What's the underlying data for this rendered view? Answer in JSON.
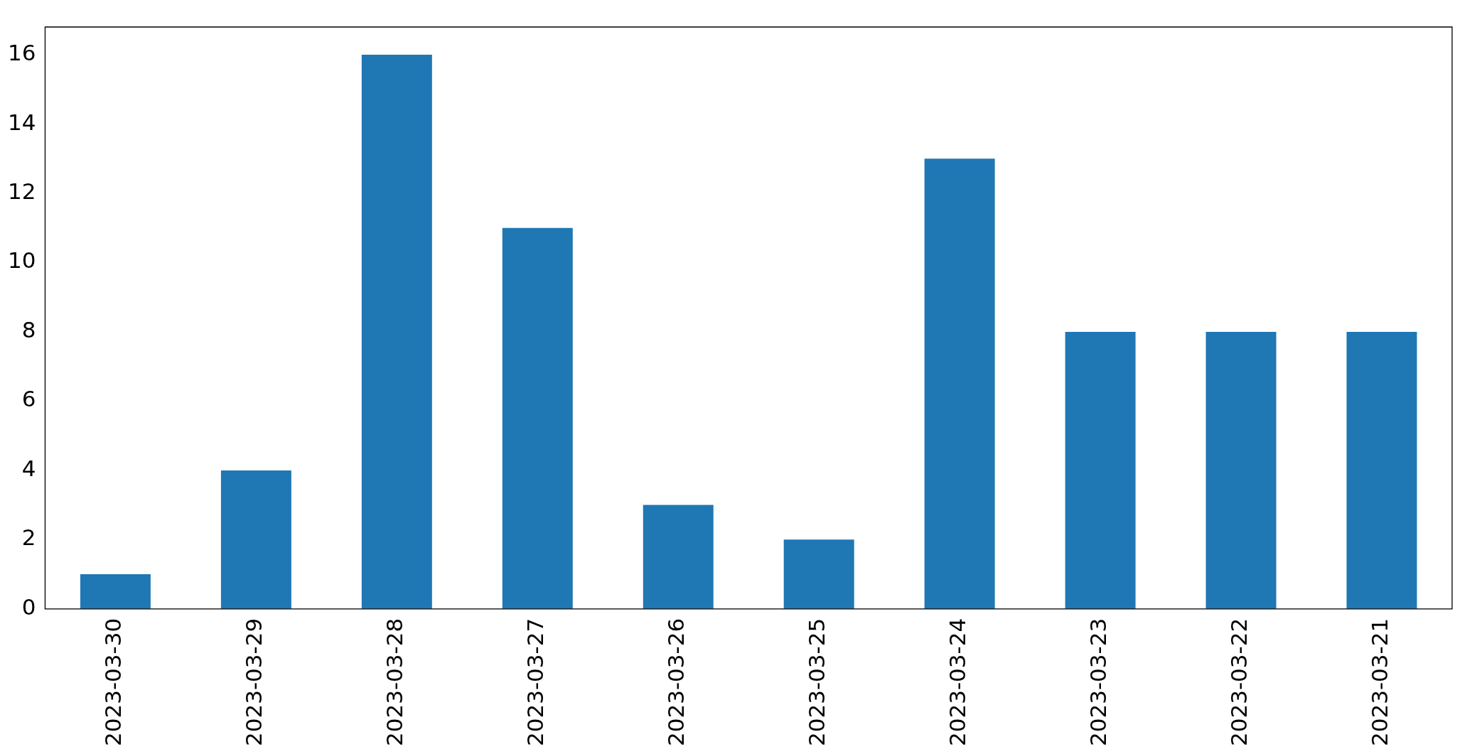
{
  "chart_data": {
    "type": "bar",
    "categories": [
      "2023-03-30",
      "2023-03-29",
      "2023-03-28",
      "2023-03-27",
      "2023-03-26",
      "2023-03-25",
      "2023-03-24",
      "2023-03-23",
      "2023-03-22",
      "2023-03-21"
    ],
    "values": [
      1,
      4,
      16,
      11,
      3,
      2,
      13,
      8,
      8,
      8
    ],
    "color": "#1f77b4",
    "ylim": [
      0,
      16.8
    ],
    "yticks": [
      0,
      2,
      4,
      6,
      8,
      10,
      12,
      14,
      16
    ],
    "grid": false,
    "legend": false
  }
}
